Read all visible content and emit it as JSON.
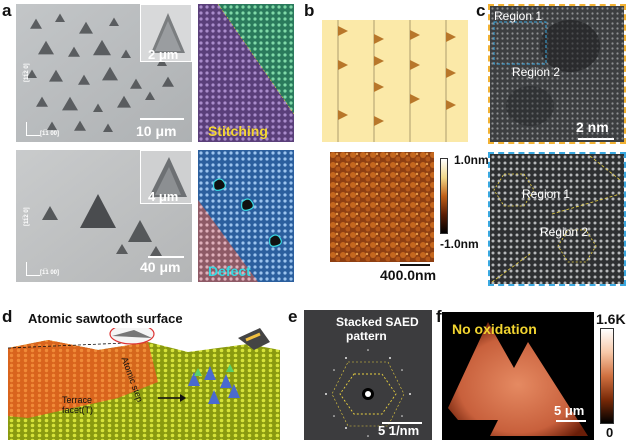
{
  "panel_letters": {
    "a": "a",
    "b": "b",
    "c": "c",
    "d": "d",
    "e": "e",
    "f": "f"
  },
  "panel_a": {
    "top_sem": {
      "inset_scale": "2 μm",
      "scale": "10 μm",
      "axis_vertical": "[11̅2 0]",
      "axis_horizontal": "[1̅1 00]"
    },
    "bottom_sem": {
      "inset_scale": "4 μm",
      "scale": "40 μm",
      "axis_vertical": "[11̅2 0]",
      "axis_horizontal": "[1̅1 00]"
    },
    "atomic_top_label": "Stitching",
    "atomic_bottom_label": "Defect",
    "colors": {
      "sem_bg": "#b9bcbe",
      "stitch_label": "#f2d530",
      "defect_label": "#37d8e0",
      "green": "#2f8c6a",
      "purple": "#6a4f8e",
      "blue": "#3b73b8",
      "pink": "#b87a88"
    }
  },
  "panel_b": {
    "afm_colorbar_max": "1.0nm",
    "afm_colorbar_min": "-1.0nm",
    "afm_scale": "400.0nm",
    "colors": {
      "schematic_bg": "#fbe9a8",
      "triangle": "#b8772a",
      "afm": "#a5521b"
    }
  },
  "panel_c": {
    "top_region1": "Region 1",
    "top_region2": "Region 2",
    "top_scale": "2 nm",
    "bottom_region1": "Region 1",
    "bottom_region2": "Region 2",
    "colors": {
      "top_border": "#f2b233",
      "bottom_border": "#3aa8e0"
    }
  },
  "panel_d": {
    "title": "Atomic sawtooth surface",
    "terrace": "Terrace",
    "facet": "facet(T)",
    "atomic_step": "Atomic step"
  },
  "panel_e": {
    "title_line1": "Stacked SAED",
    "title_line2": "pattern",
    "scale": "5 1/nm"
  },
  "panel_f": {
    "annotation": "No oxidation",
    "scale": "5 μm",
    "colorbar_max": "1.6K",
    "colorbar_min": "0"
  }
}
